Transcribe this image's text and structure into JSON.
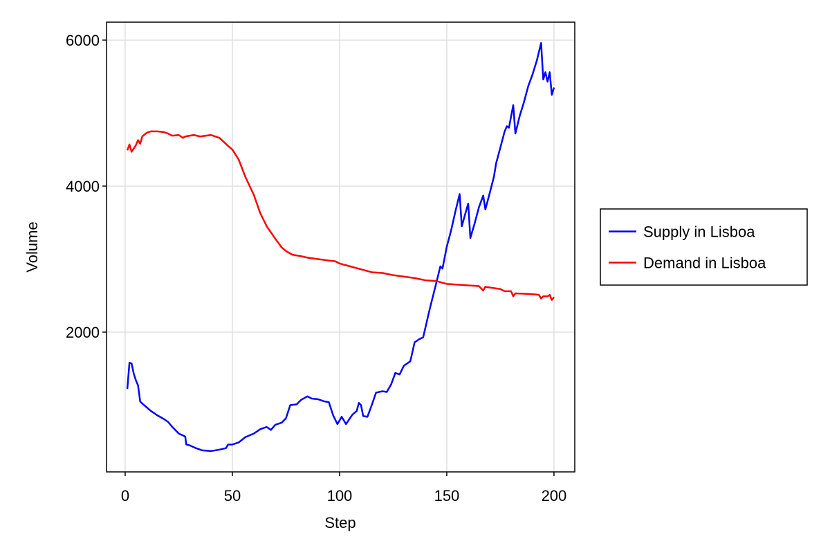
{
  "chart_data": {
    "type": "line",
    "xlabel": "Step",
    "ylabel": "Volume",
    "xlim": [
      -8.7,
      209.7
    ],
    "ylim": [
      85,
      6246
    ],
    "xticks": [
      0,
      50,
      100,
      150,
      200
    ],
    "yticks": [
      2000,
      4000,
      6000
    ],
    "grid": true,
    "legend": "right",
    "series": [
      {
        "name": "Supply in Lisboa",
        "color": "#0000ff",
        "x": [
          1,
          2,
          3,
          4,
          5,
          6,
          7,
          8,
          10,
          12,
          15,
          18,
          20,
          22,
          25,
          28,
          28.5,
          30,
          33,
          36,
          40,
          44,
          47,
          48,
          50,
          53,
          56,
          60,
          63,
          66,
          68,
          70,
          73,
          75,
          77,
          80,
          82,
          85,
          87,
          90,
          93,
          95,
          97,
          99,
          101,
          103,
          106,
          108,
          109,
          110,
          111,
          113,
          115,
          117,
          120,
          122,
          124,
          126,
          128,
          130,
          133,
          135,
          137,
          139,
          142,
          145,
          147,
          148,
          150,
          152,
          154,
          156,
          157,
          159,
          160,
          161,
          163,
          165,
          167,
          168,
          170,
          172,
          173,
          175,
          177,
          178,
          179,
          181,
          182,
          184,
          186,
          188,
          190,
          192,
          194,
          195,
          196,
          197,
          198,
          199,
          200
        ],
        "values": [
          1220,
          1580,
          1570,
          1430,
          1340,
          1270,
          1050,
          1020,
          970,
          920,
          860,
          810,
          770,
          700,
          610,
          570,
          460,
          450,
          410,
          380,
          370,
          390,
          410,
          460,
          460,
          490,
          560,
          610,
          670,
          700,
          660,
          730,
          760,
          820,
          1000,
          1010,
          1070,
          1120,
          1090,
          1080,
          1050,
          1040,
          860,
          740,
          840,
          740,
          870,
          920,
          1030,
          1000,
          850,
          840,
          1000,
          1170,
          1190,
          1180,
          1280,
          1440,
          1420,
          1540,
          1600,
          1860,
          1900,
          1930,
          2310,
          2660,
          2900,
          2870,
          3170,
          3390,
          3650,
          3890,
          3450,
          3660,
          3760,
          3290,
          3490,
          3710,
          3870,
          3680,
          3900,
          4130,
          4310,
          4530,
          4750,
          4820,
          4800,
          5110,
          4720,
          4960,
          5150,
          5370,
          5530,
          5720,
          5960,
          5460,
          5560,
          5430,
          5560,
          5250,
          5350
        ]
      },
      {
        "name": "Demand in Lisboa",
        "color": "#ff0000",
        "x": [
          1,
          2,
          3,
          5,
          6,
          7,
          8,
          10,
          12,
          15,
          18,
          20,
          22,
          25,
          27,
          28,
          32,
          35,
          40,
          44,
          48,
          50,
          53,
          56,
          60,
          63,
          66,
          70,
          73,
          75,
          78,
          82,
          85,
          90,
          95,
          98,
          100,
          105,
          110,
          115,
          120,
          125,
          130,
          135,
          140,
          145,
          150,
          155,
          160,
          165,
          167,
          168,
          175,
          177,
          180,
          181,
          182,
          190,
          193,
          194,
          195,
          197,
          198,
          199,
          200
        ],
        "values": [
          4490,
          4570,
          4470,
          4560,
          4630,
          4580,
          4680,
          4730,
          4750,
          4750,
          4740,
          4720,
          4690,
          4700,
          4660,
          4680,
          4700,
          4680,
          4700,
          4660,
          4550,
          4500,
          4360,
          4130,
          3880,
          3630,
          3450,
          3280,
          3160,
          3110,
          3060,
          3040,
          3020,
          3000,
          2980,
          2970,
          2940,
          2900,
          2860,
          2820,
          2810,
          2780,
          2760,
          2740,
          2710,
          2700,
          2660,
          2650,
          2640,
          2630,
          2570,
          2620,
          2590,
          2560,
          2560,
          2490,
          2530,
          2520,
          2510,
          2460,
          2490,
          2490,
          2510,
          2440,
          2480
        ]
      }
    ]
  }
}
